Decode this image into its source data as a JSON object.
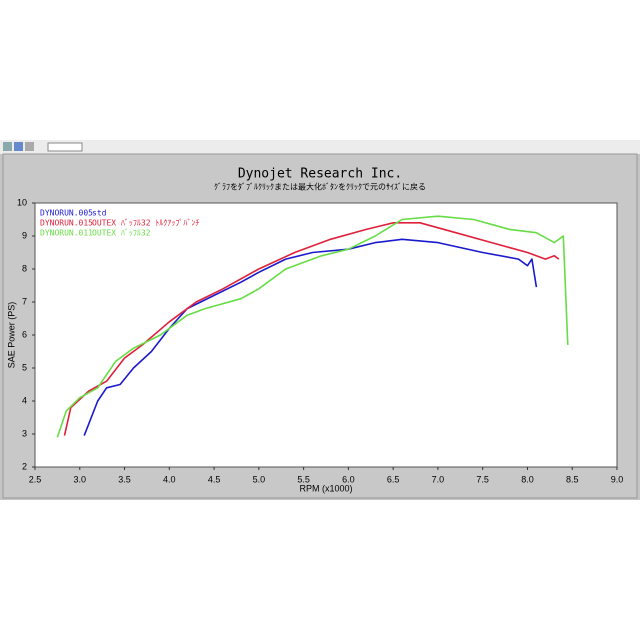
{
  "chart_data": {
    "type": "line",
    "title": "Dynojet  Research  Inc.",
    "subtitle": "ｸﾞﾗﾌをﾀﾞﾌﾞﾙｸﾘｯｸまたは最大化ﾎﾞﾀﾝをｸﾘｯｸで元のｻｲｽﾞに戻る",
    "x_label": "RPM (x1000)",
    "y_label": "SAE Power (PS)",
    "xlim": [
      2.5,
      9.0
    ],
    "ylim": [
      2,
      10
    ],
    "xticks": [
      2.5,
      {
        "value": 3,
        "label": "3.0"
      },
      3.5,
      {
        "value": 4,
        "label": "4.0"
      },
      4.5,
      {
        "value": 5,
        "label": "5.0"
      },
      5.5,
      {
        "value": 6,
        "label": "6.0"
      },
      6.5,
      {
        "value": 7,
        "label": "7.0"
      },
      7.5,
      {
        "value": 8,
        "label": "8.0"
      },
      8.5,
      {
        "value": 9,
        "label": "9.0"
      }
    ],
    "yticks": [
      2,
      3,
      4,
      5,
      6,
      7,
      8,
      9,
      10
    ],
    "grid": false,
    "series": [
      {
        "name": "DYNORUN.005",
        "description": "std",
        "color": "#1a1acc",
        "x": [
          3.05,
          3.2,
          3.3,
          3.45,
          3.6,
          3.8,
          4.0,
          4.2,
          4.5,
          4.8,
          5.0,
          5.3,
          5.6,
          6.0,
          6.3,
          6.6,
          7.0,
          7.5,
          7.9,
          8.0,
          8.05,
          8.1
        ],
        "values": [
          2.95,
          4.0,
          4.4,
          4.5,
          5.0,
          5.5,
          6.2,
          6.8,
          7.2,
          7.6,
          7.9,
          8.3,
          8.5,
          8.6,
          8.8,
          8.9,
          8.8,
          8.5,
          8.3,
          8.1,
          8.3,
          7.45
        ]
      },
      {
        "name": "DYNORUN.015",
        "description": "OUTEX ﾊﾞｯﾌﾙ32 ﾄﾙｸｱｯﾌﾟﾊﾞﾝﾁ",
        "color": "#e0203a",
        "x": [
          2.83,
          2.9,
          3.1,
          3.3,
          3.5,
          3.7,
          4.0,
          4.3,
          4.6,
          5.0,
          5.4,
          5.8,
          6.2,
          6.5,
          6.8,
          7.2,
          7.6,
          8.0,
          8.2,
          8.3,
          8.35
        ],
        "values": [
          2.95,
          3.8,
          4.3,
          4.6,
          5.3,
          5.7,
          6.4,
          7.0,
          7.4,
          8.0,
          8.5,
          8.9,
          9.2,
          9.4,
          9.4,
          9.1,
          8.8,
          8.5,
          8.3,
          8.4,
          8.3
        ]
      },
      {
        "name": "DYNORUN.011",
        "description": "OUTEX ﾊﾞｯﾌﾙ32",
        "color": "#66dd44",
        "x": [
          2.75,
          2.85,
          3.0,
          3.2,
          3.4,
          3.6,
          3.9,
          4.2,
          4.4,
          4.8,
          5.0,
          5.3,
          5.7,
          6.0,
          6.3,
          6.6,
          7.0,
          7.4,
          7.8,
          8.1,
          8.3,
          8.4,
          8.45
        ],
        "values": [
          2.9,
          3.7,
          4.1,
          4.4,
          5.2,
          5.6,
          6.0,
          6.6,
          6.8,
          7.1,
          7.4,
          8.0,
          8.4,
          8.6,
          9.0,
          9.5,
          9.6,
          9.5,
          9.2,
          9.1,
          8.8,
          9.0,
          5.7
        ]
      }
    ]
  }
}
